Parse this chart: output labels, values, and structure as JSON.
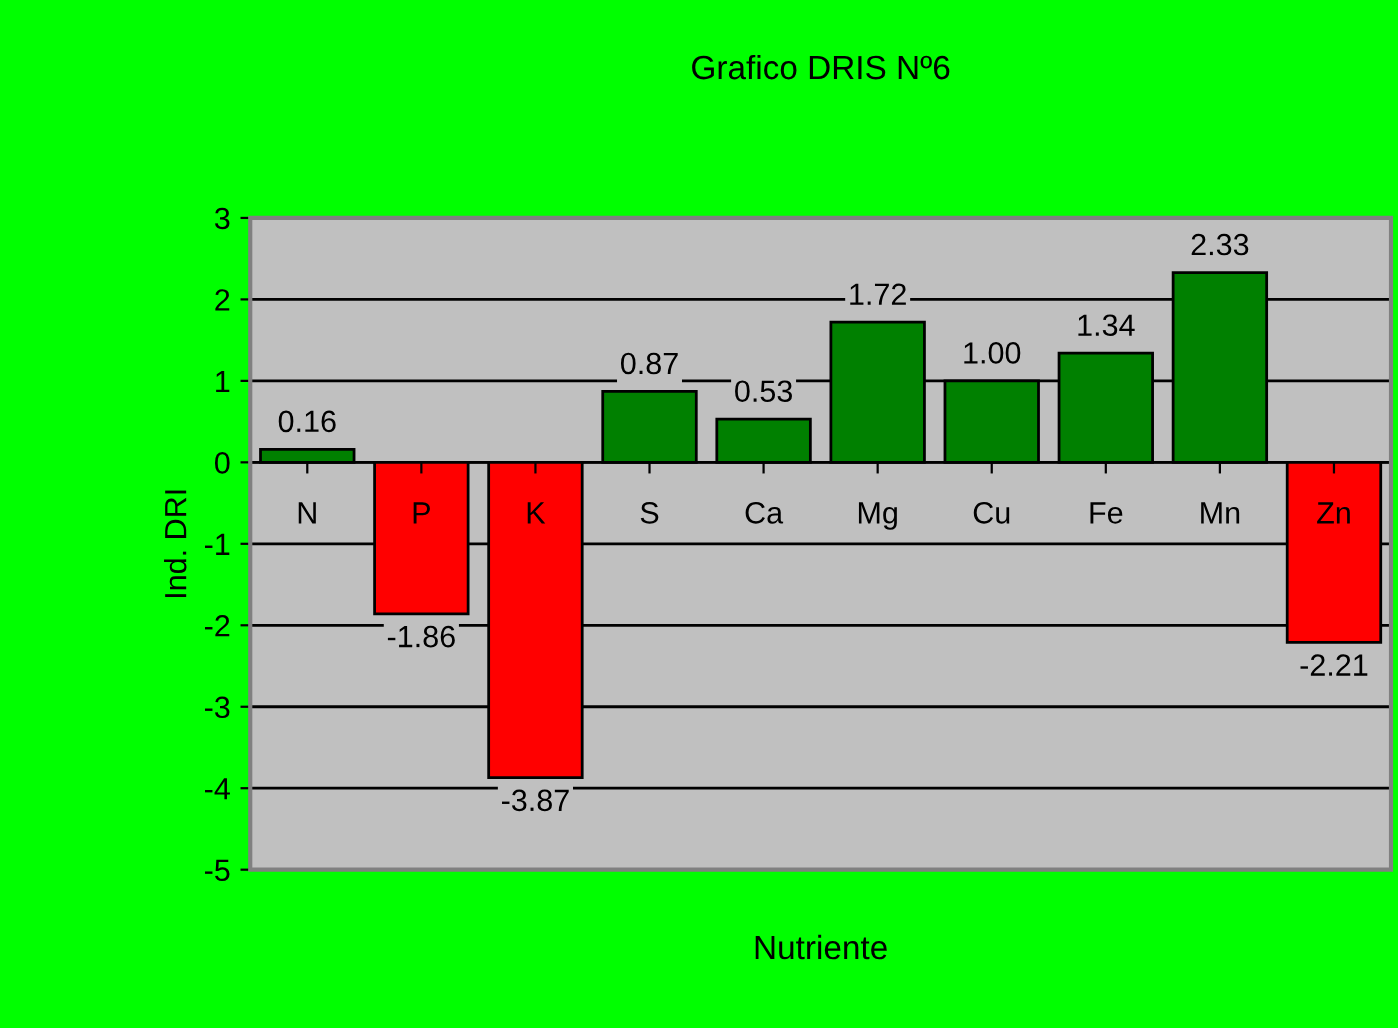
{
  "chart_data": {
    "type": "bar",
    "title": "Grafico DRIS Nº6",
    "xlabel": "Nutriente",
    "ylabel": "Ind. DRI",
    "categories": [
      "N",
      "P",
      "K",
      "S",
      "Ca",
      "Mg",
      "Cu",
      "Fe",
      "Mn",
      "Zn"
    ],
    "values": [
      0.16,
      -1.86,
      -3.87,
      0.87,
      0.53,
      1.72,
      1.0,
      1.34,
      2.33,
      -2.21
    ],
    "colors": [
      "#008000",
      "#ff0000",
      "#ff0000",
      "#008000",
      "#008000",
      "#008000",
      "#008000",
      "#008000",
      "#008000",
      "#ff0000"
    ],
    "value_labels": [
      "0.16",
      "-1.86",
      "-3.87",
      "0.87",
      "0.53",
      "1.72",
      "1.00",
      "1.34",
      "2.33",
      "-2.21"
    ],
    "ylim": [
      -5,
      3
    ],
    "yticks": [
      -5,
      -4,
      -3,
      -2,
      -1,
      0,
      1,
      2,
      3
    ],
    "grid": "y"
  }
}
